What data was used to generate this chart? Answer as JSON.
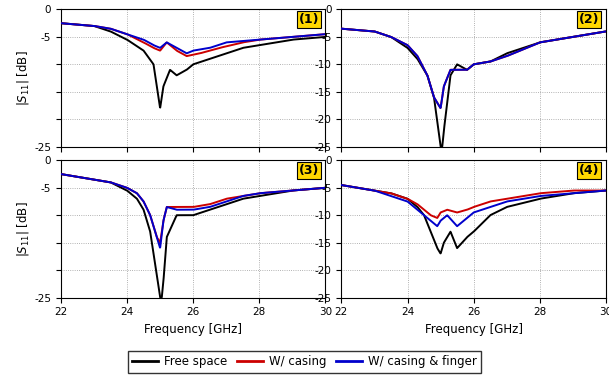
{
  "xlim": [
    22,
    30
  ],
  "ylim": [
    -25,
    0
  ],
  "xticks": [
    22,
    24,
    26,
    28,
    30
  ],
  "yticks": [
    -25,
    -20,
    -15,
    -10,
    -5,
    0
  ],
  "xlabel": "Frequency [GHz]",
  "ylabel": "|S$_{11}$| [dB]",
  "panel_labels": [
    "(1)",
    "(2)",
    "(3)",
    "(4)"
  ],
  "colors": {
    "free_space": "#000000",
    "casing": "#cc0000",
    "casing_finger": "#0000cc"
  },
  "legend_labels": [
    "Free space",
    "W/ casing",
    "W/ casing & finger"
  ],
  "background_color": "#ffffff",
  "panel1": {
    "free": {
      "x": [
        22,
        23,
        23.5,
        24,
        24.5,
        24.8,
        25.0,
        25.1,
        25.3,
        25.5,
        25.8,
        26,
        26.5,
        27,
        27.5,
        28,
        29,
        30
      ],
      "y": [
        -2.5,
        -3.0,
        -4.0,
        -5.5,
        -7.5,
        -10,
        -18,
        -14,
        -11,
        -12,
        -11,
        -10,
        -9,
        -8,
        -7,
        -6.5,
        -5.5,
        -5.0
      ]
    },
    "casing": {
      "x": [
        22,
        23,
        23.5,
        24,
        24.5,
        24.8,
        25.0,
        25.2,
        25.5,
        25.8,
        26.2,
        26.8,
        27.5,
        28,
        29,
        30
      ],
      "y": [
        -2.5,
        -3.0,
        -3.5,
        -4.5,
        -6.0,
        -7.0,
        -7.5,
        -6.0,
        -7.5,
        -8.5,
        -8.0,
        -7.0,
        -6.0,
        -5.5,
        -5.0,
        -4.5
      ]
    },
    "finger": {
      "x": [
        22,
        23,
        23.5,
        24,
        24.5,
        24.8,
        25.0,
        25.2,
        25.5,
        25.8,
        26.0,
        26.5,
        27,
        28,
        29,
        30
      ],
      "y": [
        -2.5,
        -3.0,
        -3.5,
        -4.5,
        -5.5,
        -6.5,
        -7.0,
        -6.0,
        -7.0,
        -8.0,
        -7.5,
        -7.0,
        -6.0,
        -5.5,
        -5.0,
        -4.5
      ]
    }
  },
  "panel2": {
    "free": {
      "x": [
        22,
        23,
        23.5,
        24,
        24.3,
        24.6,
        24.8,
        25.0,
        25.05,
        25.1,
        25.3,
        25.5,
        25.8,
        26,
        26.5,
        27,
        28,
        29,
        30
      ],
      "y": [
        -3.5,
        -4.0,
        -5.0,
        -7.0,
        -9.0,
        -12,
        -16,
        -25,
        -25,
        -22,
        -12,
        -10,
        -11,
        -10,
        -9.5,
        -8.0,
        -6.0,
        -5.0,
        -4.0
      ]
    },
    "casing": {
      "x": [
        22,
        23,
        23.5,
        24,
        24.3,
        24.6,
        24.8,
        25.0,
        25.1,
        25.3,
        25.5,
        25.8,
        26,
        26.5,
        27,
        28,
        29,
        30
      ],
      "y": [
        -3.5,
        -4.0,
        -5.0,
        -6.5,
        -8.5,
        -12,
        -16,
        -18,
        -14,
        -11,
        -11,
        -11,
        -10,
        -9.5,
        -8.5,
        -6.0,
        -5.0,
        -4.0
      ]
    },
    "finger": {
      "x": [
        22,
        23,
        23.5,
        24,
        24.3,
        24.6,
        24.8,
        25.0,
        25.1,
        25.3,
        25.5,
        25.8,
        26,
        26.5,
        27,
        28,
        29,
        30
      ],
      "y": [
        -3.5,
        -4.0,
        -5.0,
        -6.5,
        -8.5,
        -12,
        -16,
        -18,
        -14,
        -11,
        -11,
        -11,
        -10,
        -9.5,
        -8.5,
        -6.0,
        -5.0,
        -4.0
      ]
    }
  },
  "panel3": {
    "free": {
      "x": [
        22,
        22.5,
        23,
        23.5,
        24,
        24.3,
        24.5,
        24.7,
        24.9,
        25.0,
        25.05,
        25.1,
        25.2,
        25.5,
        26,
        26.5,
        27,
        27.5,
        28,
        29,
        30
      ],
      "y": [
        -2.5,
        -3.0,
        -3.5,
        -4.0,
        -5.5,
        -7.0,
        -9.0,
        -13,
        -21,
        -25,
        -25,
        -22,
        -14,
        -10,
        -10,
        -9.0,
        -8.0,
        -7.0,
        -6.5,
        -5.5,
        -5.0
      ]
    },
    "casing": {
      "x": [
        22,
        22.5,
        23,
        23.5,
        24,
        24.3,
        24.5,
        24.7,
        24.9,
        25.0,
        25.1,
        25.2,
        25.5,
        26,
        26.5,
        27,
        27.5,
        28,
        29,
        30
      ],
      "y": [
        -2.5,
        -3.0,
        -3.5,
        -4.0,
        -5.0,
        -6.0,
        -7.5,
        -10,
        -14,
        -15,
        -11,
        -8.5,
        -8.5,
        -8.5,
        -8.0,
        -7.0,
        -6.5,
        -6.0,
        -5.5,
        -5.0
      ]
    },
    "finger": {
      "x": [
        22,
        22.5,
        23,
        23.5,
        24,
        24.3,
        24.5,
        24.7,
        24.9,
        25.0,
        25.1,
        25.2,
        25.5,
        26,
        26.5,
        27,
        27.5,
        28,
        29,
        30
      ],
      "y": [
        -2.5,
        -3.0,
        -3.5,
        -4.0,
        -5.0,
        -6.0,
        -7.5,
        -10,
        -14,
        -16,
        -11,
        -8.5,
        -9.0,
        -9.0,
        -8.5,
        -7.5,
        -6.5,
        -6.0,
        -5.5,
        -5.0
      ]
    }
  },
  "panel4": {
    "free": {
      "x": [
        22,
        22.5,
        23,
        23.5,
        24,
        24.3,
        24.5,
        24.7,
        24.9,
        25.0,
        25.1,
        25.3,
        25.5,
        25.8,
        26,
        26.5,
        27,
        28,
        29,
        30
      ],
      "y": [
        -4.5,
        -5.0,
        -5.5,
        -6.0,
        -7.0,
        -8.5,
        -10,
        -13,
        -16,
        -17,
        -15,
        -13,
        -16,
        -14,
        -13,
        -10,
        -8.5,
        -7.0,
        -6.0,
        -5.5
      ]
    },
    "casing": {
      "x": [
        22,
        22.5,
        23,
        23.5,
        24,
        24.3,
        24.5,
        24.7,
        24.9,
        25.0,
        25.2,
        25.5,
        25.8,
        26,
        26.5,
        27,
        28,
        29,
        30
      ],
      "y": [
        -4.5,
        -5.0,
        -5.5,
        -6.0,
        -7.0,
        -8.0,
        -9.0,
        -10,
        -10.5,
        -9.5,
        -9.0,
        -9.5,
        -9.0,
        -8.5,
        -7.5,
        -7.0,
        -6.0,
        -5.5,
        -5.5
      ]
    },
    "finger": {
      "x": [
        22,
        22.5,
        23,
        23.5,
        24,
        24.3,
        24.5,
        24.7,
        24.9,
        25.0,
        25.2,
        25.5,
        25.7,
        25.9,
        26,
        26.5,
        27,
        28,
        29,
        30
      ],
      "y": [
        -4.5,
        -5.0,
        -5.5,
        -6.5,
        -7.5,
        -9.0,
        -10,
        -11,
        -12,
        -11,
        -10,
        -12,
        -11,
        -10,
        -9.5,
        -8.5,
        -7.5,
        -6.5,
        -6.0,
        -5.5
      ]
    }
  }
}
